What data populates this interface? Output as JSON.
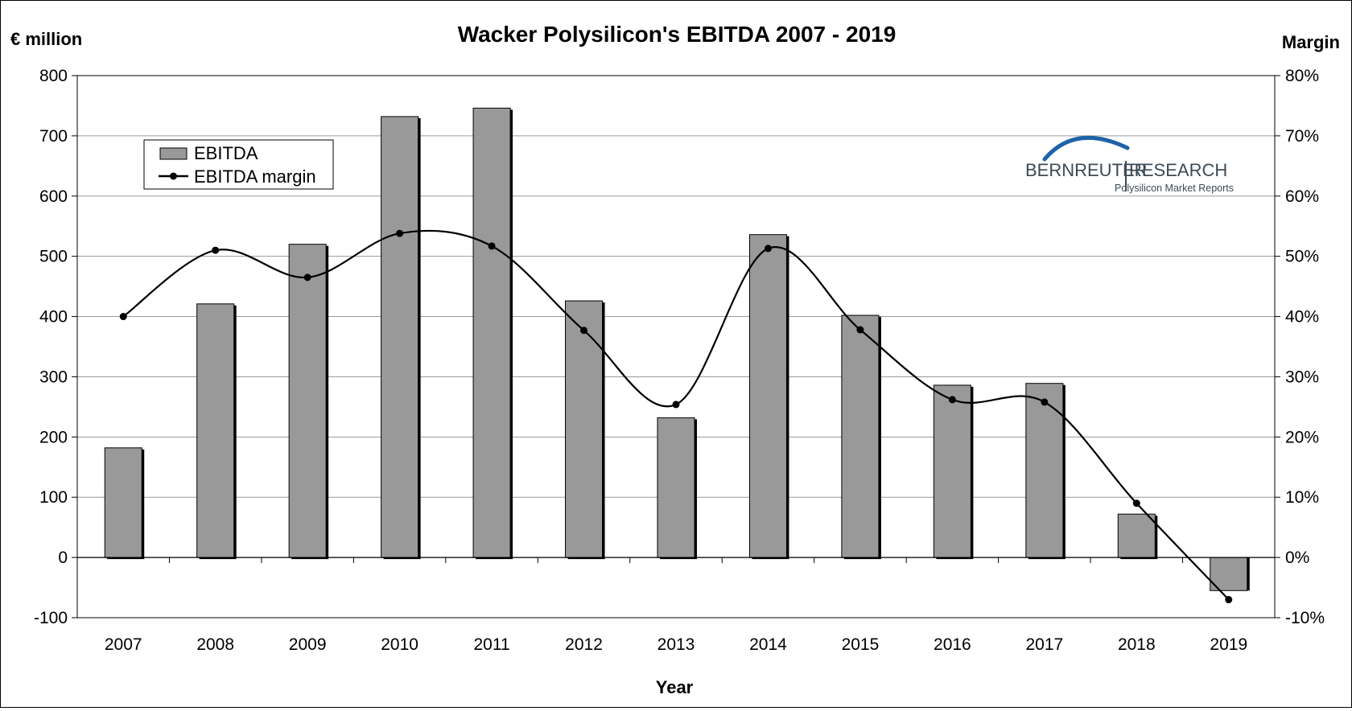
{
  "chart_data": {
    "type": "bar",
    "title": "Wacker Polysilicon's EBITDA 2007 - 2019",
    "xlabel": "Year",
    "ylabel": "€ million",
    "y2label": "Margin",
    "ylim": [
      -100,
      800
    ],
    "y2lim": [
      -0.1,
      0.8
    ],
    "yticks": [
      "800",
      "700",
      "600",
      "500",
      "400",
      "300",
      "200",
      "100",
      "0",
      "-100"
    ],
    "y2ticks": [
      "80%",
      "70%",
      "60%",
      "50%",
      "40%",
      "30%",
      "20%",
      "10%",
      "0%",
      "-10%"
    ],
    "grid": true,
    "legend_position": "top-left",
    "categories": [
      "2007",
      "2008",
      "2009",
      "2010",
      "2011",
      "2012",
      "2013",
      "2014",
      "2015",
      "2016",
      "2017",
      "2018",
      "2019"
    ],
    "series": [
      {
        "name": "EBITDA",
        "type": "bar",
        "axis": "left",
        "color": "#999999",
        "values": [
          182,
          421,
          520,
          732,
          746,
          426,
          232,
          536,
          402,
          286,
          289,
          72,
          -55
        ]
      },
      {
        "name": "EBITDA margin",
        "type": "line",
        "axis": "right",
        "color": "#000000",
        "values": [
          0.4,
          0.51,
          0.465,
          0.538,
          0.517,
          0.377,
          0.254,
          0.513,
          0.378,
          0.262,
          0.258,
          0.09,
          -0.07
        ]
      }
    ]
  },
  "logo": {
    "name": "BERNREUTER",
    "name2": "RESEARCH",
    "tagline": "Polysilicon Market Reports",
    "accent": "#1e63a8",
    "text_color": "#3c4a56"
  }
}
